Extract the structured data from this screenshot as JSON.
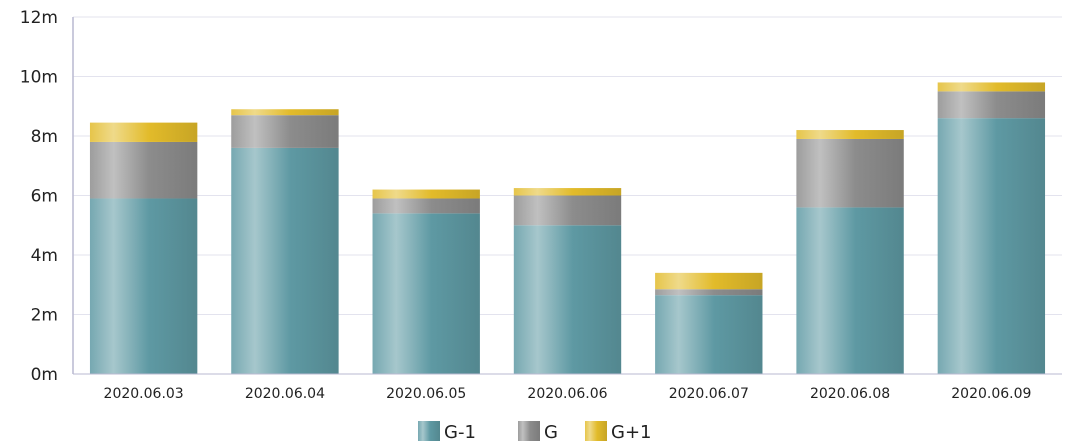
{
  "chart_data": {
    "type": "bar",
    "stacked": true,
    "title": "",
    "xlabel": "",
    "ylabel": "",
    "categories": [
      "2020.06.03",
      "2020.06.04",
      "2020.06.05",
      "2020.06.06",
      "2020.06.07",
      "2020.06.08",
      "2020.06.09"
    ],
    "series": [
      {
        "name": "G-1",
        "values": [
          5.9,
          7.6,
          5.4,
          5.0,
          2.65,
          5.6,
          8.6
        ],
        "color": "#5e99a3"
      },
      {
        "name": "G",
        "values": [
          1.9,
          1.1,
          0.5,
          1.0,
          0.2,
          2.3,
          0.9
        ],
        "color": "#8c8c8c"
      },
      {
        "name": "G+1",
        "values": [
          0.65,
          0.2,
          0.3,
          0.25,
          0.55,
          0.3,
          0.3
        ],
        "color": "#e2bb2a"
      }
    ],
    "ylim": [
      0,
      12
    ],
    "yticks": [
      0,
      2,
      4,
      6,
      8,
      10,
      12
    ],
    "ytick_labels": [
      "0m",
      "2m",
      "4m",
      "6m",
      "8m",
      "10m",
      "12m"
    ],
    "grid": true,
    "legend": "bottom-center"
  },
  "colors": {
    "grid": "#e3e3ee",
    "axis": "#b9b9d0",
    "title": "#1a6fc2"
  }
}
